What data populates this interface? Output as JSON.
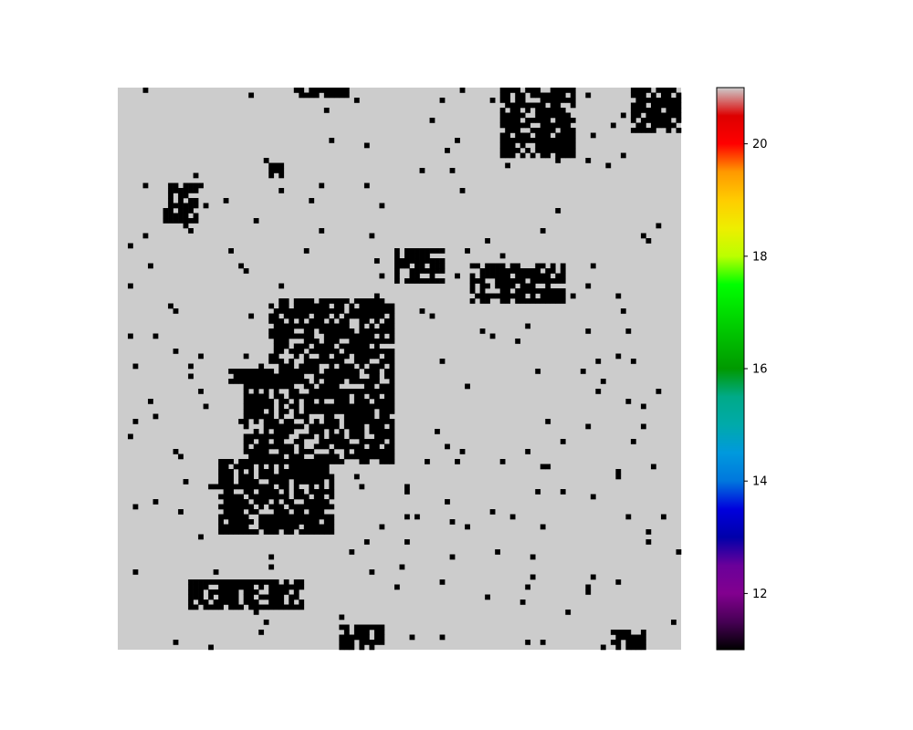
{
  "chart_data": {
    "type": "heatmap",
    "title": "",
    "xlabel": "",
    "ylabel": "",
    "axes_visible": false,
    "grid": false,
    "dimensions": {
      "rows": 112,
      "cols": 112
    },
    "colormap": "nipy_spectral",
    "vmin": 11.0,
    "vmax": 21.0,
    "background_value": 21.0,
    "feature_value": 11.0,
    "colorbar": {
      "orientation": "vertical",
      "location": "right",
      "ticks": [
        12,
        14,
        16,
        18,
        20
      ],
      "tick_labels": [
        "12",
        "14",
        "16",
        "18",
        "20"
      ]
    },
    "feature_regions": [
      {
        "name": "top-left-streak",
        "row_range": [
          0,
          1
        ],
        "col_range": [
          36,
          45
        ],
        "value": 11.0
      },
      {
        "name": "top-right-cluster",
        "row_range": [
          0,
          13
        ],
        "col_range": [
          76,
          90
        ],
        "value": 11.0
      },
      {
        "name": "top-right-edge",
        "row_range": [
          0,
          8
        ],
        "col_range": [
          102,
          111
        ],
        "value": 11.0
      },
      {
        "name": "upper-left-bar",
        "row_range": [
          19,
          21
        ],
        "col_range": [
          10,
          16
        ],
        "value": 11.0
      },
      {
        "name": "upper-left-block",
        "row_range": [
          22,
          26
        ],
        "col_range": [
          9,
          15
        ],
        "value": 11.0
      },
      {
        "name": "small-square",
        "row_range": [
          15,
          17
        ],
        "col_range": [
          30,
          32
        ],
        "value": 11.0
      },
      {
        "name": "central-mass-upper",
        "row_range": [
          42,
          55
        ],
        "col_range": [
          30,
          54
        ],
        "value": 11.0
      },
      {
        "name": "central-mass-mid",
        "row_range": [
          56,
          74
        ],
        "col_range": [
          25,
          54
        ],
        "value": 11.0
      },
      {
        "name": "central-left-bar",
        "row_range": [
          56,
          58
        ],
        "col_range": [
          22,
          36
        ],
        "value": 11.0
      },
      {
        "name": "lower-left-block",
        "row_range": [
          74,
          88
        ],
        "col_range": [
          20,
          42
        ],
        "value": 11.0
      },
      {
        "name": "middle-right-cluster",
        "row_range": [
          32,
          38
        ],
        "col_range": [
          55,
          64
        ],
        "value": 11.0
      },
      {
        "name": "right-mid-cluster",
        "row_range": [
          35,
          42
        ],
        "col_range": [
          70,
          88
        ],
        "value": 11.0
      },
      {
        "name": "bottom-left-bar",
        "row_range": [
          98,
          103
        ],
        "col_range": [
          14,
          36
        ],
        "value": 11.0
      },
      {
        "name": "bottom-center-bits",
        "row_range": [
          107,
          111
        ],
        "col_range": [
          44,
          52
        ],
        "value": 11.0
      },
      {
        "name": "bottom-right-bits",
        "row_range": [
          108,
          111
        ],
        "col_range": [
          98,
          104
        ],
        "value": 11.0
      }
    ]
  }
}
